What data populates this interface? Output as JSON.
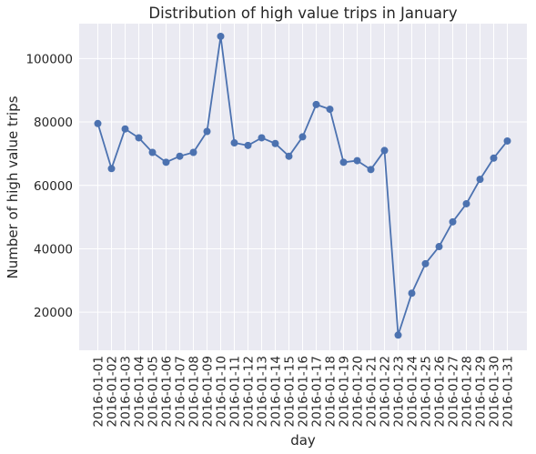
{
  "chart_data": {
    "type": "line",
    "title": "Distribution of high value trips in January",
    "xlabel": "day",
    "ylabel": "Number of high value trips",
    "ylim": [
      8000,
      111000
    ],
    "yticks": [
      20000,
      40000,
      60000,
      80000,
      100000
    ],
    "grid": true,
    "colors": {
      "background": "#EAEAF2",
      "grid": "#FFFFFF",
      "line": "#4C72B0",
      "text": "#262626"
    },
    "x": [
      "2016-01-01",
      "2016-01-02",
      "2016-01-03",
      "2016-01-04",
      "2016-01-05",
      "2016-01-06",
      "2016-01-07",
      "2016-01-08",
      "2016-01-09",
      "2016-01-10",
      "2016-01-11",
      "2016-01-12",
      "2016-01-13",
      "2016-01-14",
      "2016-01-15",
      "2016-01-16",
      "2016-01-17",
      "2016-01-18",
      "2016-01-19",
      "2016-01-20",
      "2016-01-21",
      "2016-01-22",
      "2016-01-23",
      "2016-01-24",
      "2016-01-25",
      "2016-01-26",
      "2016-01-27",
      "2016-01-28",
      "2016-01-29",
      "2016-01-30",
      "2016-01-31"
    ],
    "series": [
      {
        "values": [
          79500,
          65300,
          77800,
          75000,
          70400,
          67300,
          69200,
          70400,
          77000,
          107000,
          73400,
          72600,
          75000,
          73200,
          69200,
          75300,
          85500,
          84000,
          67300,
          67800,
          65000,
          71000,
          12800,
          26000,
          35300,
          40700,
          48500,
          54200,
          61900,
          68600,
          74000
        ],
        "marker": "circle"
      }
    ]
  }
}
